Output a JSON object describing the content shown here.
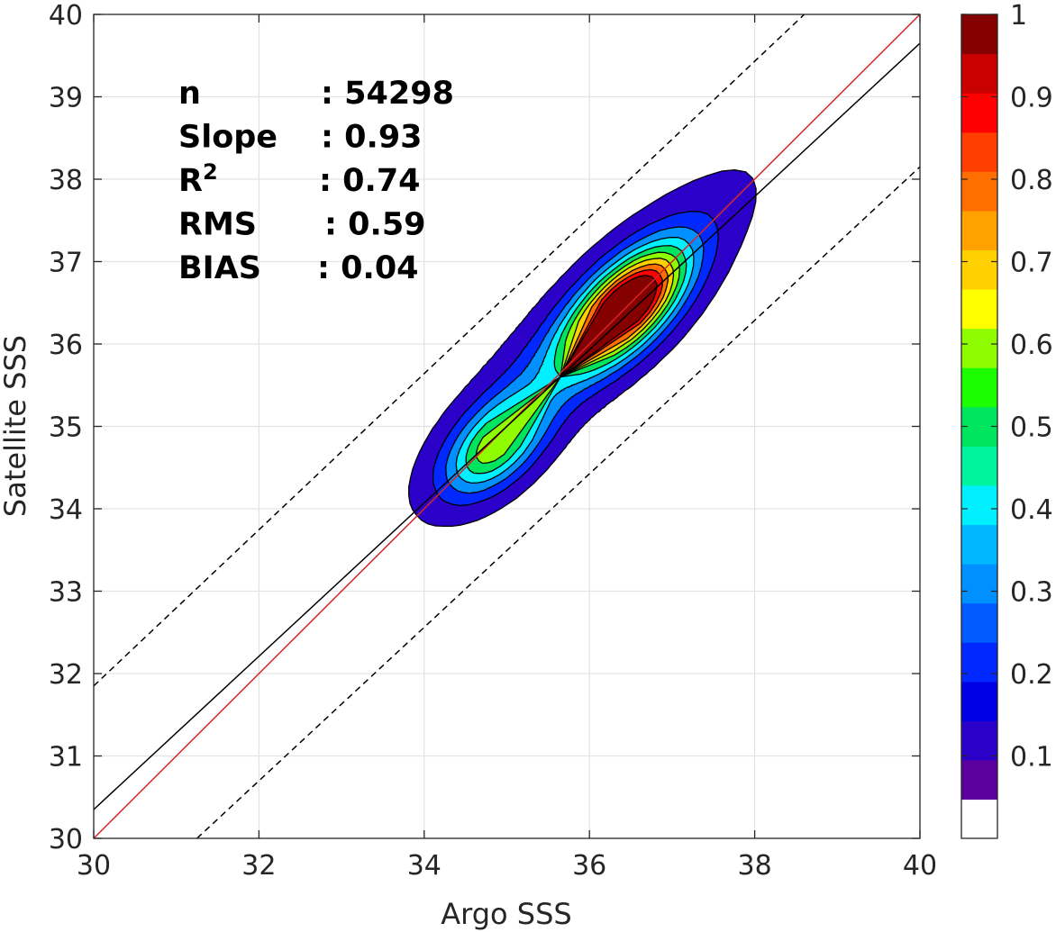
{
  "chart_data": {
    "type": "density-contour-scatter",
    "title": "",
    "xlabel": "Argo SSS",
    "ylabel": "Satellite SSS",
    "xlim": [
      30,
      40
    ],
    "ylim": [
      30,
      40
    ],
    "xticks": [
      30,
      32,
      34,
      36,
      38,
      40
    ],
    "yticks": [
      30,
      31,
      32,
      33,
      34,
      35,
      36,
      37,
      38,
      39,
      40
    ],
    "grid": true,
    "stats": [
      {
        "label": "n",
        "value": ": 54298"
      },
      {
        "label": "Slope",
        "value": ": 0.93"
      },
      {
        "label": "R",
        "sup": "2",
        "value": ": 0.74"
      },
      {
        "label": "RMS",
        "value": ": 0.59"
      },
      {
        "label": "BIAS",
        "value": ": 0.04"
      }
    ],
    "lines": [
      {
        "name": "1:1 line",
        "color": "#d62728",
        "style": "solid",
        "x": [
          30,
          40
        ],
        "y": [
          30,
          40
        ]
      },
      {
        "name": "regression fit",
        "color": "#000000",
        "style": "solid",
        "x": [
          30,
          40
        ],
        "y": [
          30.35,
          39.65
        ]
      },
      {
        "name": "upper bound",
        "color": "#000000",
        "style": "dashed",
        "x": [
          30,
          38.6
        ],
        "y": [
          31.85,
          40
        ]
      },
      {
        "name": "lower bound",
        "color": "#000000",
        "style": "dashed",
        "x": [
          31.25,
          40
        ],
        "y": [
          30,
          38.15
        ]
      }
    ],
    "density_contours": {
      "center": [
        36.45,
        36.45
      ],
      "secondary_center": [
        34.85,
        34.75
      ],
      "levels": [
        0.05,
        0.15,
        0.25,
        0.35,
        0.45,
        0.55,
        0.65,
        0.75,
        0.85,
        0.95
      ]
    },
    "colorbar": {
      "ticks": [
        0.1,
        0.2,
        0.3,
        0.4,
        0.5,
        0.6,
        0.7,
        0.8,
        0.9,
        1
      ],
      "tick_labels": [
        "0.1",
        "0.2",
        "0.3",
        "0.4",
        "0.5",
        "0.6",
        "0.7",
        "0.8",
        "0.9",
        "1"
      ],
      "range": [
        0,
        1
      ],
      "colors": [
        "#ffffff",
        "#5b009e",
        "#2b00c8",
        "#0000e6",
        "#0028ff",
        "#005cff",
        "#0090ff",
        "#00b8ff",
        "#00f0ff",
        "#00f4a0",
        "#00e560",
        "#1bfd00",
        "#8ffc00",
        "#ffff00",
        "#ffd000",
        "#ffa200",
        "#ff6e00",
        "#ff3e00",
        "#ff0000",
        "#c80000",
        "#850000"
      ]
    }
  }
}
